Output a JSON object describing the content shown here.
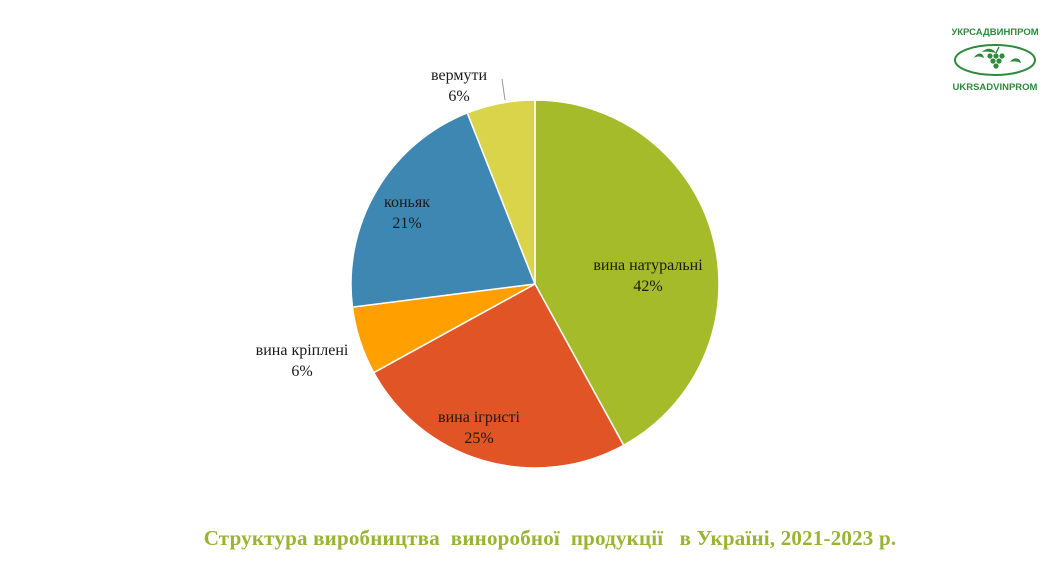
{
  "chart_data": {
    "type": "pie",
    "title": "Структура виробництва  виноробної  продукції   в Україні, 2021-2023 р.",
    "slices": [
      {
        "label": "вина натуральні",
        "value": 42,
        "value_label": "42%",
        "color": "#a6bb2a"
      },
      {
        "label": "вина ігристі",
        "value": 25,
        "value_label": "25%",
        "color": "#e05426"
      },
      {
        "label": "вина кріплені",
        "value": 6,
        "value_label": "6%",
        "color": "#ffa000"
      },
      {
        "label": "коньяк",
        "value": 21,
        "value_label": "21%",
        "color": "#3e87b3"
      },
      {
        "label": "вермути",
        "value": 6,
        "value_label": "6%",
        "color": "#d9d44a"
      }
    ],
    "start": "12 o'clock, clockwise",
    "legend": "none"
  },
  "logo": {
    "top_text": "УКРСАДВИНПРОМ",
    "bottom_text": "UKRSADVINPROM",
    "color": "#2f8a3c"
  }
}
